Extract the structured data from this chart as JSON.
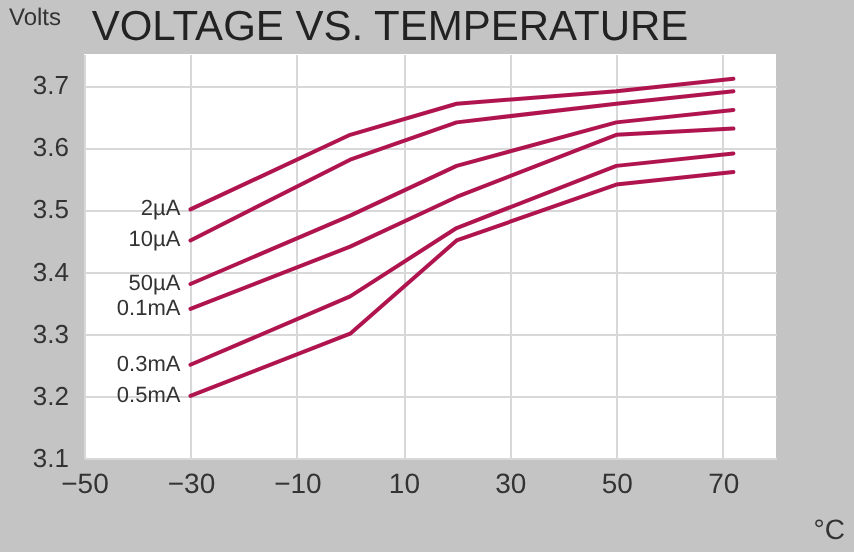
{
  "chart_data": {
    "type": "line",
    "title": "VOLTAGE VS. TEMPERATURE",
    "xlabel": "°C",
    "ylabel": "Volts",
    "x": [
      -30,
      0,
      20,
      50,
      72
    ],
    "series": [
      {
        "name": "2µA",
        "color": "#b0144f",
        "values": [
          3.5,
          3.62,
          3.67,
          3.69,
          3.71
        ]
      },
      {
        "name": "10µA",
        "color": "#b0144f",
        "values": [
          3.45,
          3.58,
          3.64,
          3.67,
          3.69
        ]
      },
      {
        "name": "50µA",
        "color": "#b0144f",
        "values": [
          3.38,
          3.49,
          3.57,
          3.64,
          3.66
        ]
      },
      {
        "name": "0.1mA",
        "color": "#b0144f",
        "values": [
          3.34,
          3.44,
          3.52,
          3.62,
          3.63
        ]
      },
      {
        "name": "0.3mA",
        "color": "#b0144f",
        "values": [
          3.25,
          3.36,
          3.47,
          3.57,
          3.59
        ]
      },
      {
        "name": "0.5mA",
        "color": "#b0144f",
        "values": [
          3.2,
          3.3,
          3.45,
          3.54,
          3.56
        ]
      }
    ],
    "xlim": [
      -50,
      80
    ],
    "xticks": [
      -50,
      -30,
      -10,
      10,
      30,
      50,
      70
    ],
    "ylim": [
      3.1,
      3.75
    ],
    "yticks": [
      3.1,
      3.2,
      3.3,
      3.4,
      3.5,
      3.6,
      3.7
    ],
    "grid": true,
    "legend": false,
    "line_style": "solid",
    "marker": "none"
  }
}
